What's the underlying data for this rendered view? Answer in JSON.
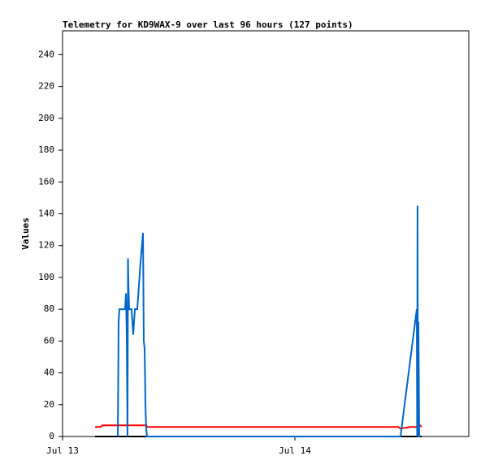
{
  "chart_data": {
    "type": "line",
    "title": "Telemetry for KD9WAX-9 over last 96 hours (127 points)",
    "y_label": "Values",
    "xlim": [
      0,
      41.96
    ],
    "xticks": [
      {
        "value": 0,
        "label": "Jul 13"
      },
      {
        "value": 24,
        "label": "Jul 14"
      }
    ],
    "ylim": [
      0,
      255
    ],
    "yticks": [
      0,
      20,
      40,
      60,
      80,
      100,
      120,
      140,
      160,
      180,
      200,
      220,
      240
    ],
    "series": [
      {
        "color": "#000000",
        "x": [
          3.36,
          37.09
        ],
        "values": [
          0,
          0
        ]
      },
      {
        "color": "#ff0000",
        "x": [
          3.36,
          3.94,
          4.11,
          8.64,
          8.73,
          34.66,
          34.91,
          35.92,
          36.5,
          36.92,
          37.09
        ],
        "values": [
          6,
          6,
          7,
          7,
          6,
          6,
          5,
          6,
          6,
          7,
          6
        ]
      },
      {
        "color": "#0066cc",
        "x": [
          5.71,
          5.79,
          5.87,
          6.46,
          6.55,
          6.63,
          6.71,
          6.76,
          6.8,
          6.88,
          7.13,
          7.3,
          7.47,
          7.72,
          8.06,
          8.31,
          8.39,
          8.48,
          8.56,
          8.64,
          8.73,
          34.91,
          36.59,
          36.63,
          36.67,
          36.71,
          36.76,
          36.84,
          36.92
        ],
        "values": [
          0,
          72,
          80,
          80,
          90,
          64,
          0,
          112,
          96,
          80,
          80,
          64,
          80,
          80,
          110,
          128,
          60,
          55,
          20,
          5,
          0,
          0,
          80,
          0,
          145,
          0,
          72,
          0,
          0
        ]
      }
    ]
  }
}
